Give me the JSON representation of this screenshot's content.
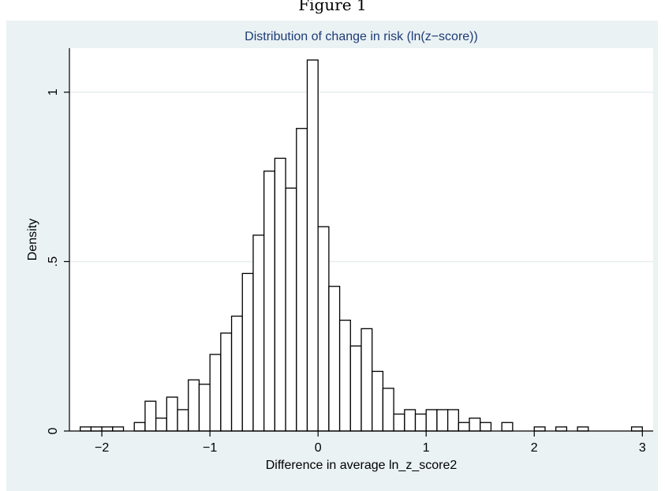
{
  "figure": {
    "caption": "Figure 1"
  },
  "chart_data": {
    "type": "bar",
    "title": "Distribution of change in risk (ln(z−score))",
    "xlabel": "Difference in average ln_z_score2",
    "ylabel": "Density",
    "xlim": [
      -2.3,
      3.1
    ],
    "ylim": [
      0,
      1.13
    ],
    "bin_width": 0.1,
    "x_ticks": [
      {
        "value": -2,
        "label": "−2"
      },
      {
        "value": -1,
        "label": "−1"
      },
      {
        "value": 0,
        "label": "0"
      },
      {
        "value": 1,
        "label": "1"
      },
      {
        "value": 2,
        "label": "2"
      },
      {
        "value": 3,
        "label": "3"
      }
    ],
    "y_ticks": [
      {
        "value": 0,
        "label": "0"
      },
      {
        "value": 0.5,
        "label": ".5"
      },
      {
        "value": 1,
        "label": "1"
      }
    ],
    "grid": true,
    "colors": {
      "panel_background": "#eaf2f3",
      "plot_background": "#ffffff",
      "gridline": "#e6eeee",
      "bar_fill": "#ffffff",
      "bar_stroke": "#000000",
      "title": "#1e3a78"
    },
    "bins": [
      {
        "x": -2.2,
        "y": 0.012
      },
      {
        "x": -2.1,
        "y": 0.012
      },
      {
        "x": -2.0,
        "y": 0.012
      },
      {
        "x": -1.9,
        "y": 0.012
      },
      {
        "x": -1.7,
        "y": 0.025
      },
      {
        "x": -1.6,
        "y": 0.088
      },
      {
        "x": -1.5,
        "y": 0.038
      },
      {
        "x": -1.4,
        "y": 0.1
      },
      {
        "x": -1.3,
        "y": 0.063
      },
      {
        "x": -1.2,
        "y": 0.151
      },
      {
        "x": -1.1,
        "y": 0.138
      },
      {
        "x": -1.0,
        "y": 0.226
      },
      {
        "x": -0.9,
        "y": 0.289
      },
      {
        "x": -0.8,
        "y": 0.339
      },
      {
        "x": -0.7,
        "y": 0.465
      },
      {
        "x": -0.6,
        "y": 0.578
      },
      {
        "x": -0.5,
        "y": 0.767
      },
      {
        "x": -0.4,
        "y": 0.805
      },
      {
        "x": -0.3,
        "y": 0.717
      },
      {
        "x": -0.2,
        "y": 0.893
      },
      {
        "x": -0.1,
        "y": 1.095
      },
      {
        "x": 0.0,
        "y": 0.603
      },
      {
        "x": 0.1,
        "y": 0.427
      },
      {
        "x": 0.2,
        "y": 0.327
      },
      {
        "x": 0.3,
        "y": 0.251
      },
      {
        "x": 0.4,
        "y": 0.302
      },
      {
        "x": 0.5,
        "y": 0.176
      },
      {
        "x": 0.6,
        "y": 0.126
      },
      {
        "x": 0.7,
        "y": 0.05
      },
      {
        "x": 0.8,
        "y": 0.063
      },
      {
        "x": 0.9,
        "y": 0.05
      },
      {
        "x": 1.0,
        "y": 0.063
      },
      {
        "x": 1.1,
        "y": 0.063
      },
      {
        "x": 1.2,
        "y": 0.063
      },
      {
        "x": 1.3,
        "y": 0.025
      },
      {
        "x": 1.4,
        "y": 0.038
      },
      {
        "x": 1.5,
        "y": 0.025
      },
      {
        "x": 1.7,
        "y": 0.025
      },
      {
        "x": 2.0,
        "y": 0.012
      },
      {
        "x": 2.2,
        "y": 0.012
      },
      {
        "x": 2.4,
        "y": 0.012
      },
      {
        "x": 2.9,
        "y": 0.012
      }
    ]
  }
}
